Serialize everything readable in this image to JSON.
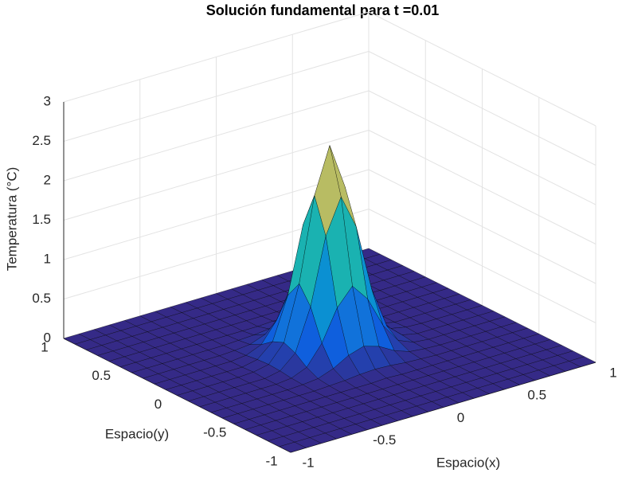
{
  "chart_data": {
    "type": "surface",
    "title": "Solución fundamental para t =0.01",
    "xlabel": "Espacio(x)",
    "ylabel": "Espacio(y)",
    "zlabel": "Temperatura (°C)",
    "x": [
      -1,
      -0.9,
      -0.8,
      -0.7,
      -0.6,
      -0.5,
      -0.4,
      -0.3,
      -0.2,
      -0.1,
      0,
      0.1,
      0.2,
      0.3,
      0.4,
      0.5,
      0.6,
      0.7,
      0.8,
      0.9,
      1
    ],
    "y": [
      -1,
      -0.9,
      -0.8,
      -0.7,
      -0.6,
      -0.5,
      -0.4,
      -0.3,
      -0.2,
      -0.1,
      0,
      0.1,
      0.2,
      0.3,
      0.4,
      0.5,
      0.6,
      0.7,
      0.8,
      0.9,
      1
    ],
    "z": [
      [
        0,
        0,
        0,
        0,
        0,
        0,
        0,
        0,
        0,
        0,
        0,
        0,
        0,
        0,
        0,
        0,
        0,
        0,
        0,
        0,
        0
      ],
      [
        0,
        0,
        0,
        0,
        0,
        0,
        0,
        0,
        0,
        0,
        0,
        0,
        0,
        0,
        0,
        0,
        0,
        0,
        0,
        0,
        0
      ],
      [
        0,
        0,
        0,
        0,
        0,
        0,
        0,
        0,
        0,
        0,
        0,
        0,
        0,
        0,
        0,
        0,
        0,
        0,
        0,
        0,
        0
      ],
      [
        0,
        0,
        0,
        0,
        0,
        0,
        0,
        0,
        0,
        0,
        0,
        0,
        0,
        0,
        0,
        0,
        0,
        0,
        0,
        0,
        0
      ],
      [
        0,
        0,
        0,
        0,
        0,
        0,
        0,
        0,
        0,
        0,
        0,
        0,
        0,
        0,
        0,
        0,
        0,
        0,
        0,
        0,
        0
      ],
      [
        0,
        0,
        0,
        0,
        0,
        0,
        0,
        0,
        0,
        0,
        0.01,
        0,
        0,
        0,
        0,
        0,
        0,
        0,
        0,
        0,
        0
      ],
      [
        0,
        0,
        0,
        0,
        0,
        0,
        0,
        0.01,
        0.02,
        0.04,
        0.05,
        0.04,
        0.02,
        0.01,
        0,
        0,
        0,
        0,
        0,
        0,
        0
      ],
      [
        0,
        0,
        0,
        0,
        0,
        0,
        0.01,
        0.03,
        0.1,
        0.21,
        0.27,
        0.21,
        0.1,
        0.03,
        0.01,
        0,
        0,
        0,
        0,
        0,
        0
      ],
      [
        0,
        0,
        0,
        0,
        0,
        0,
        0.02,
        0.1,
        0.35,
        0.74,
        0.96,
        0.74,
        0.35,
        0.1,
        0.02,
        0,
        0,
        0,
        0,
        0,
        0
      ],
      [
        0,
        0,
        0,
        0,
        0,
        0,
        0.04,
        0.21,
        0.74,
        1.58,
        2.02,
        1.58,
        0.74,
        0.21,
        0.04,
        0,
        0,
        0,
        0,
        0,
        0
      ],
      [
        0,
        0,
        0,
        0,
        0,
        0.01,
        0.05,
        0.27,
        0.96,
        2.02,
        2.6,
        2.02,
        0.96,
        0.27,
        0.05,
        0.01,
        0,
        0,
        0,
        0,
        0
      ],
      [
        0,
        0,
        0,
        0,
        0,
        0,
        0.04,
        0.21,
        0.74,
        1.58,
        2.02,
        1.58,
        0.74,
        0.21,
        0.04,
        0,
        0,
        0,
        0,
        0,
        0
      ],
      [
        0,
        0,
        0,
        0,
        0,
        0,
        0.02,
        0.1,
        0.35,
        0.74,
        0.96,
        0.74,
        0.35,
        0.1,
        0.02,
        0,
        0,
        0,
        0,
        0,
        0
      ],
      [
        0,
        0,
        0,
        0,
        0,
        0,
        0.01,
        0.03,
        0.1,
        0.21,
        0.27,
        0.21,
        0.1,
        0.03,
        0.01,
        0,
        0,
        0,
        0,
        0,
        0
      ],
      [
        0,
        0,
        0,
        0,
        0,
        0,
        0,
        0.01,
        0.02,
        0.04,
        0.05,
        0.04,
        0.02,
        0.01,
        0,
        0,
        0,
        0,
        0,
        0,
        0
      ],
      [
        0,
        0,
        0,
        0,
        0,
        0,
        0,
        0,
        0,
        0,
        0.01,
        0,
        0,
        0,
        0,
        0,
        0,
        0,
        0,
        0,
        0
      ],
      [
        0,
        0,
        0,
        0,
        0,
        0,
        0,
        0,
        0,
        0,
        0,
        0,
        0,
        0,
        0,
        0,
        0,
        0,
        0,
        0,
        0
      ],
      [
        0,
        0,
        0,
        0,
        0,
        0,
        0,
        0,
        0,
        0,
        0,
        0,
        0,
        0,
        0,
        0,
        0,
        0,
        0,
        0,
        0
      ],
      [
        0,
        0,
        0,
        0,
        0,
        0,
        0,
        0,
        0,
        0,
        0,
        0,
        0,
        0,
        0,
        0,
        0,
        0,
        0,
        0,
        0
      ],
      [
        0,
        0,
        0,
        0,
        0,
        0,
        0,
        0,
        0,
        0,
        0,
        0,
        0,
        0,
        0,
        0,
        0,
        0,
        0,
        0,
        0
      ],
      [
        0,
        0,
        0,
        0,
        0,
        0,
        0,
        0,
        0,
        0,
        0,
        0,
        0,
        0,
        0,
        0,
        0,
        0,
        0,
        0,
        0
      ]
    ],
    "xlim": [
      -1,
      1
    ],
    "ylim": [
      -1,
      1
    ],
    "zlim": [
      0,
      3
    ],
    "xticks": [
      -1,
      -0.5,
      0,
      0.5,
      1
    ],
    "yticks": [
      -1,
      -0.5,
      0,
      0.5,
      1
    ],
    "zticks": [
      0,
      0.5,
      1,
      1.5,
      2,
      2.5,
      3
    ],
    "grid": true
  }
}
